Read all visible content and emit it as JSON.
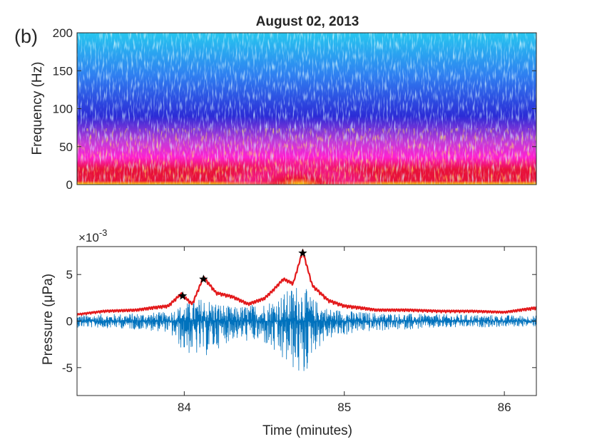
{
  "panel_tag": "(b)",
  "chart_data": [
    {
      "type": "heatmap",
      "title": "August 02, 2013",
      "xlabel": "",
      "ylabel": "Frequency (Hz)",
      "xlim": [
        83.33,
        86.2
      ],
      "ylim": [
        0,
        200
      ],
      "yticks": [
        0,
        50,
        100,
        150,
        200
      ],
      "ytick_labels": [
        "0",
        "50",
        "100",
        "150",
        "200"
      ],
      "grid": false,
      "colormap": [
        "#2b2bd6",
        "#2f7ff0",
        "#26c6ef",
        "#c23ad8",
        "#ff1fd0",
        "#e8103a",
        "#ffe20a"
      ],
      "energy_peak_time": 84.72,
      "energy_peak_max_frequency": 70
    },
    {
      "type": "line",
      "title": "",
      "xlabel": "Time (minutes)",
      "ylabel": "Pressure (μPa)",
      "y_exponent_label": "×10",
      "y_exponent": "-3",
      "xlim": [
        83.33,
        86.2
      ],
      "ylim": [
        -8,
        8
      ],
      "xticks": [
        84,
        85,
        86
      ],
      "xtick_labels": [
        "84",
        "85",
        "86"
      ],
      "yticks": [
        -5,
        0,
        5
      ],
      "ytick_labels": [
        "-5",
        "0",
        "5"
      ],
      "grid": false,
      "series": [
        {
          "color": "#0072bd",
          "kind": "waveform",
          "amplitude_envelope": {
            "x": [
              83.33,
              83.6,
              83.9,
              84.0,
              84.12,
              84.3,
              84.5,
              84.6,
              84.7,
              84.74,
              84.8,
              84.9,
              85.1,
              85.4,
              85.8,
              86.2
            ],
            "upper": [
              0.7,
              0.8,
              1.0,
              1.9,
              2.6,
              1.5,
              2.0,
              2.8,
              4.0,
              4.0,
              2.5,
              1.4,
              1.0,
              0.8,
              0.7,
              0.6
            ],
            "lower": [
              -0.7,
              -0.8,
              -1.2,
              -3.5,
              -4.0,
              -2.0,
              -2.5,
              -4.5,
              -5.5,
              -7.0,
              -3.5,
              -2.0,
              -1.2,
              -0.9,
              -0.7,
              -0.6
            ]
          }
        },
        {
          "color": "#e31a1c",
          "kind": "envelope",
          "x": [
            83.33,
            83.5,
            83.7,
            83.9,
            83.98,
            84.05,
            84.12,
            84.2,
            84.3,
            84.4,
            84.5,
            84.55,
            84.62,
            84.68,
            84.74,
            84.8,
            84.9,
            85.0,
            85.2,
            85.4,
            85.6,
            85.8,
            86.0,
            86.2
          ],
          "y": [
            0.6,
            0.9,
            1.0,
            1.4,
            2.7,
            1.6,
            4.5,
            2.8,
            2.4,
            1.6,
            2.2,
            3.0,
            4.3,
            3.8,
            7.3,
            3.6,
            2.0,
            1.4,
            1.0,
            1.0,
            0.9,
            0.9,
            0.8,
            1.2
          ]
        }
      ],
      "markers": {
        "symbol": "star",
        "color": "#000000",
        "x": [
          83.99,
          84.12,
          84.74
        ],
        "y": [
          2.7,
          4.5,
          7.3
        ]
      }
    }
  ]
}
